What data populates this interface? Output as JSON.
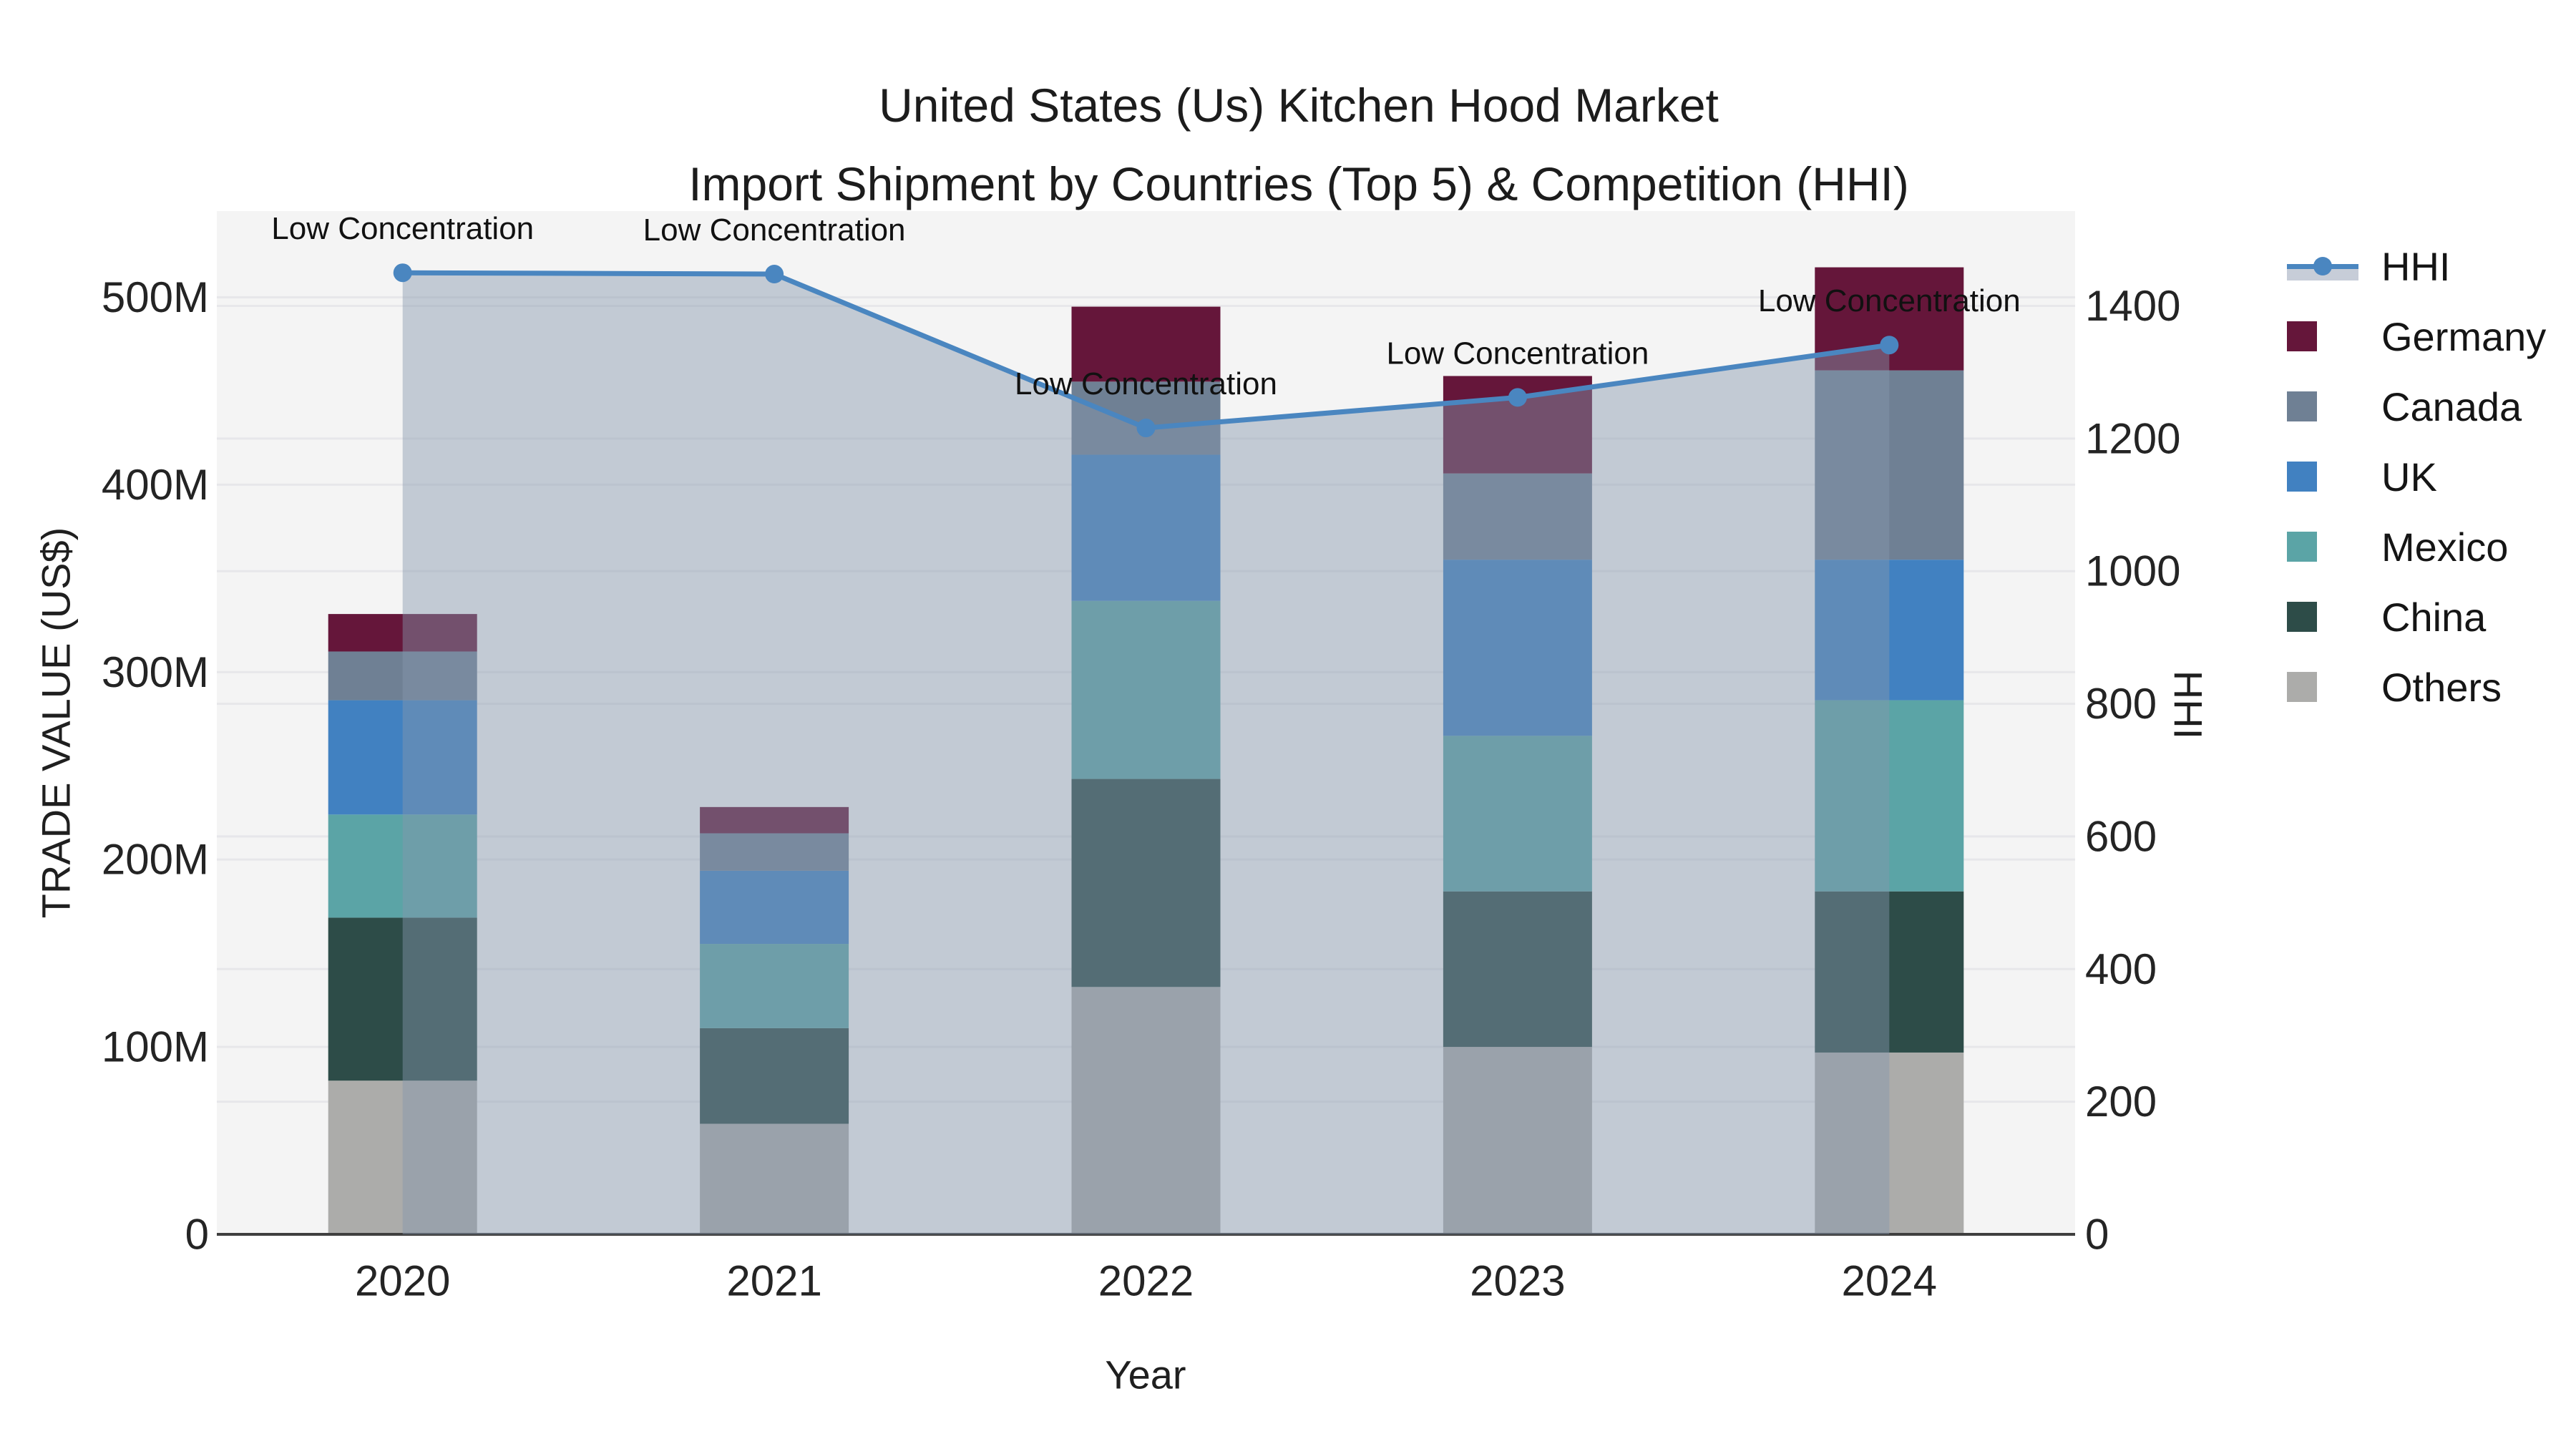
{
  "title": {
    "line1": "United States (Us) Kitchen Hood Market",
    "line2": "Import Shipment by Countries (Top 5) & Competition (HHI)"
  },
  "chart_data": {
    "type": "combo-stacked-bar-and-line-dual-axis",
    "x_categories": [
      "2020",
      "2021",
      "2022",
      "2023",
      "2024"
    ],
    "xlabel": "Year",
    "left_axis": {
      "label": "TRADE VALUE (US$)",
      "tick_labels": [
        "0",
        "100M",
        "200M",
        "300M",
        "400M",
        "500M"
      ],
      "tick_values_M": [
        0,
        100,
        200,
        300,
        400,
        500
      ],
      "range_M": [
        0,
        546
      ],
      "grid": true
    },
    "right_axis": {
      "label": "HHI",
      "tick_labels": [
        "0",
        "200",
        "400",
        "600",
        "800",
        "1000",
        "1200",
        "1400"
      ],
      "tick_values": [
        0,
        200,
        400,
        600,
        800,
        1000,
        1200,
        1400
      ],
      "range": [
        0,
        1543
      ],
      "grid": true
    },
    "bar_series": [
      {
        "name": "Others",
        "color": "#acacaa",
        "values_M": [
          82,
          59,
          132,
          100,
          97
        ]
      },
      {
        "name": "China",
        "color": "#2d4c48",
        "values_M": [
          87,
          51,
          111,
          83,
          86
        ]
      },
      {
        "name": "Mexico",
        "color": "#5ba4a6",
        "values_M": [
          55,
          45,
          95,
          83,
          102
        ]
      },
      {
        "name": "UK",
        "color": "#4181c1",
        "values_M": [
          61,
          39,
          78,
          94,
          75
        ]
      },
      {
        "name": "Canada",
        "color": "#6f8094",
        "values_M": [
          26,
          20,
          39,
          46,
          101
        ]
      },
      {
        "name": "Germany",
        "color": "#65163a",
        "values_M": [
          20,
          14,
          40,
          52,
          55
        ]
      }
    ],
    "bar_totals_M": [
      331,
      228,
      495,
      458,
      516
    ],
    "line_series": {
      "name": "HHI",
      "color": "#4a86c0",
      "area_fill": "rgba(134,150,172,0.45)",
      "marker": "circle",
      "values": [
        1450,
        1448,
        1216,
        1262,
        1341
      ]
    },
    "annotations": [
      {
        "x": "2020",
        "text": "Low Concentration"
      },
      {
        "x": "2021",
        "text": "Low Concentration"
      },
      {
        "x": "2022",
        "text": "Low Concentration"
      },
      {
        "x": "2023",
        "text": "Low Concentration"
      },
      {
        "x": "2024",
        "text": "Low Concentration"
      }
    ]
  },
  "legend": {
    "items": [
      {
        "label": "HHI",
        "type": "line",
        "color": "#4a86c0",
        "band_color": "#c7cdd8"
      },
      {
        "label": "Germany",
        "type": "swatch",
        "color": "#65163a"
      },
      {
        "label": "Canada",
        "type": "swatch",
        "color": "#6f8094"
      },
      {
        "label": "UK",
        "type": "swatch",
        "color": "#4181c1"
      },
      {
        "label": "Mexico",
        "type": "swatch",
        "color": "#5ba4a6"
      },
      {
        "label": "China",
        "type": "swatch",
        "color": "#2d4c48"
      },
      {
        "label": "Others",
        "type": "swatch",
        "color": "#acacaa"
      }
    ]
  },
  "colors": {
    "plot_background": "#f4f4f4",
    "gridline": "#e7e7ea",
    "axis_baseline": "#3f3f3f",
    "page_background": "#ffffff"
  }
}
